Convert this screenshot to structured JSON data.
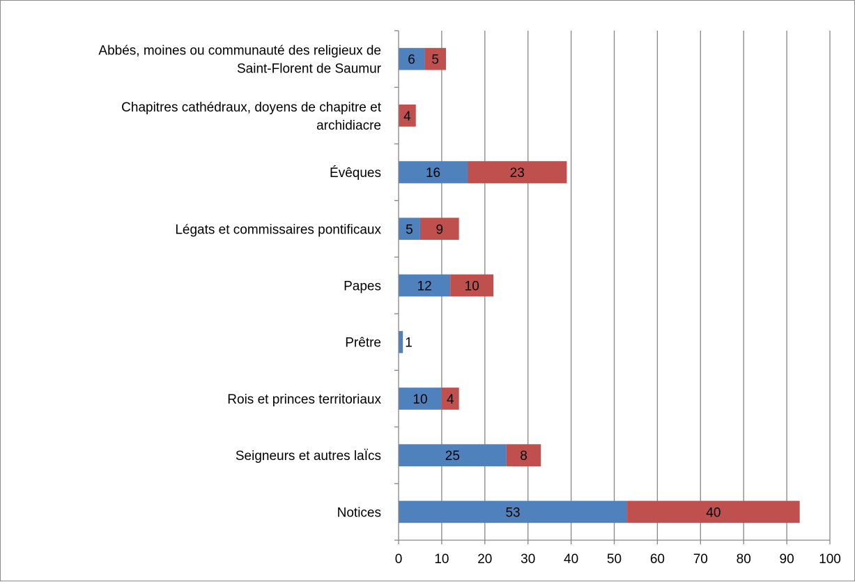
{
  "chart_data": {
    "type": "bar",
    "orientation": "horizontal",
    "stacked": true,
    "categories": [
      "Abbés, moines ou communauté des religieux de Saint-Florent de Saumur",
      "Chapitres cathédraux, doyens de chapitre et archidiacre",
      "Évêques",
      "Légats et commissaires pontificaux",
      "Papes",
      "Prêtre",
      "Rois et princes territoriaux",
      "Seigneurs et autres laÏcs",
      "Notices"
    ],
    "category_lines": [
      [
        "Abbés, moines ou communauté des religieux de",
        "Saint-Florent de Saumur"
      ],
      [
        "Chapitres cathédraux, doyens de chapitre et",
        "archidiacre"
      ],
      [
        "Évêques"
      ],
      [
        "Légats et commissaires pontificaux"
      ],
      [
        "Papes"
      ],
      [
        "Prêtre"
      ],
      [
        "Rois et princes territoriaux"
      ],
      [
        "Seigneurs et autres laÏcs"
      ],
      [
        "Notices"
      ]
    ],
    "series": [
      {
        "color": "#4f81bd",
        "values": [
          6,
          0,
          16,
          5,
          12,
          1,
          10,
          25,
          53
        ]
      },
      {
        "color": "#c0504d",
        "values": [
          5,
          4,
          23,
          9,
          10,
          0,
          4,
          8,
          40
        ]
      }
    ],
    "xlim": [
      0,
      100
    ],
    "xticks": [
      0,
      10,
      20,
      30,
      40,
      50,
      60,
      70,
      80,
      90,
      100
    ],
    "grid": true,
    "legend": "none",
    "title": "",
    "xlabel": "",
    "ylabel": ""
  }
}
